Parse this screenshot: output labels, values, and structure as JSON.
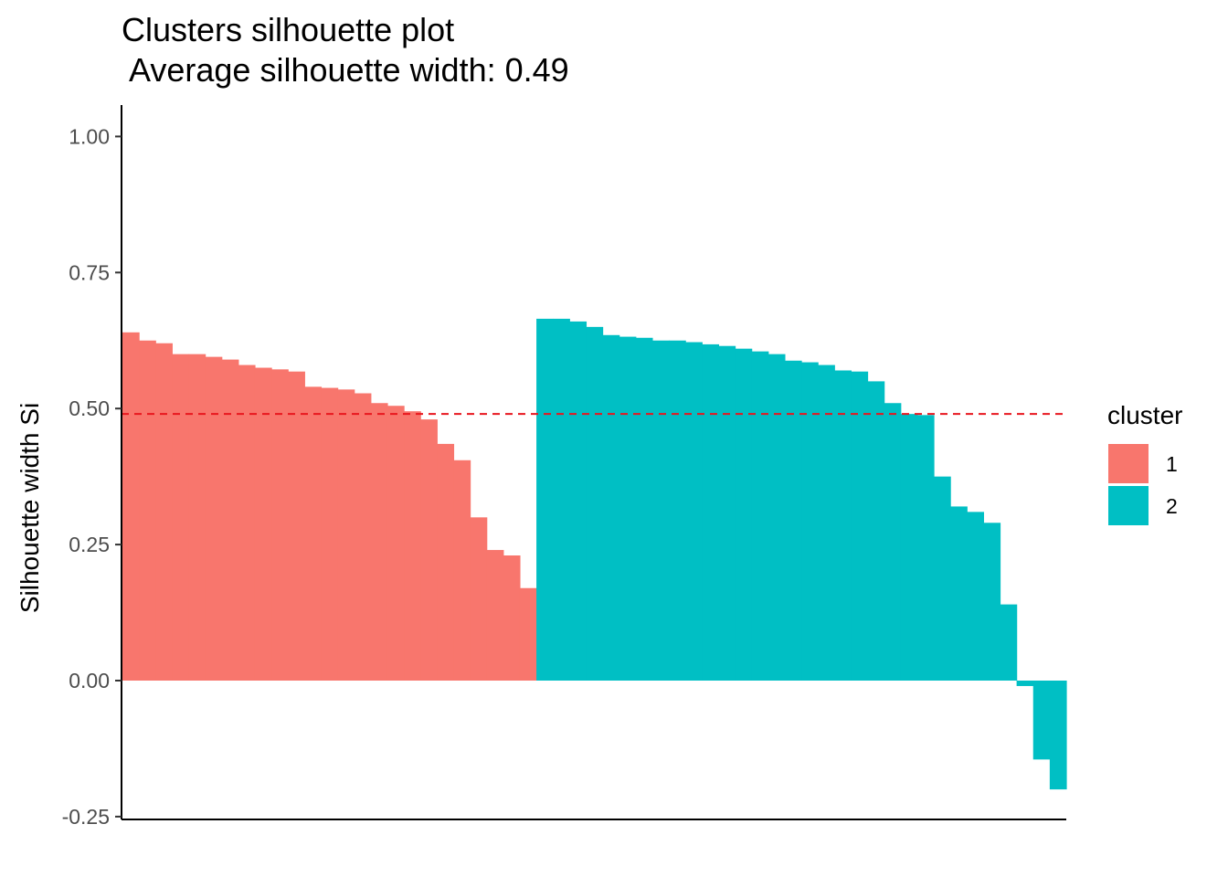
{
  "chart_data": {
    "type": "bar",
    "title": "Clusters silhouette plot",
    "subtitle": " Average silhouette width: 0.49",
    "xlabel": "",
    "ylabel": "Silhouette width Si",
    "ylim": [
      -0.25,
      1.0
    ],
    "yticks": [
      "-0.25",
      "0.00",
      "0.25",
      "0.50",
      "0.75",
      "1.00"
    ],
    "ytick_values": [
      -0.25,
      0.0,
      0.25,
      0.5,
      0.75,
      1.0
    ],
    "average_line": {
      "value": 0.49,
      "color": "#e8161e",
      "style": "dashed"
    },
    "grid": false,
    "legend": {
      "title": "cluster",
      "position": "right",
      "entries": [
        {
          "label": "1",
          "color": "#f8766d"
        },
        {
          "label": "2",
          "color": "#00bfc4"
        }
      ]
    },
    "series": [
      {
        "name": "1",
        "color": "#f8766d",
        "values": [
          0.64,
          0.625,
          0.62,
          0.6,
          0.6,
          0.595,
          0.59,
          0.58,
          0.575,
          0.572,
          0.568,
          0.54,
          0.538,
          0.535,
          0.528,
          0.51,
          0.505,
          0.495,
          0.48,
          0.435,
          0.405,
          0.3,
          0.24,
          0.23,
          0.17
        ]
      },
      {
        "name": "2",
        "color": "#00bfc4",
        "values": [
          0.665,
          0.665,
          0.66,
          0.65,
          0.635,
          0.632,
          0.63,
          0.625,
          0.625,
          0.622,
          0.618,
          0.615,
          0.61,
          0.605,
          0.6,
          0.588,
          0.585,
          0.58,
          0.57,
          0.568,
          0.55,
          0.51,
          0.49,
          0.488,
          0.375,
          0.32,
          0.31,
          0.29,
          0.14,
          -0.01,
          -0.145,
          -0.2
        ]
      }
    ]
  }
}
